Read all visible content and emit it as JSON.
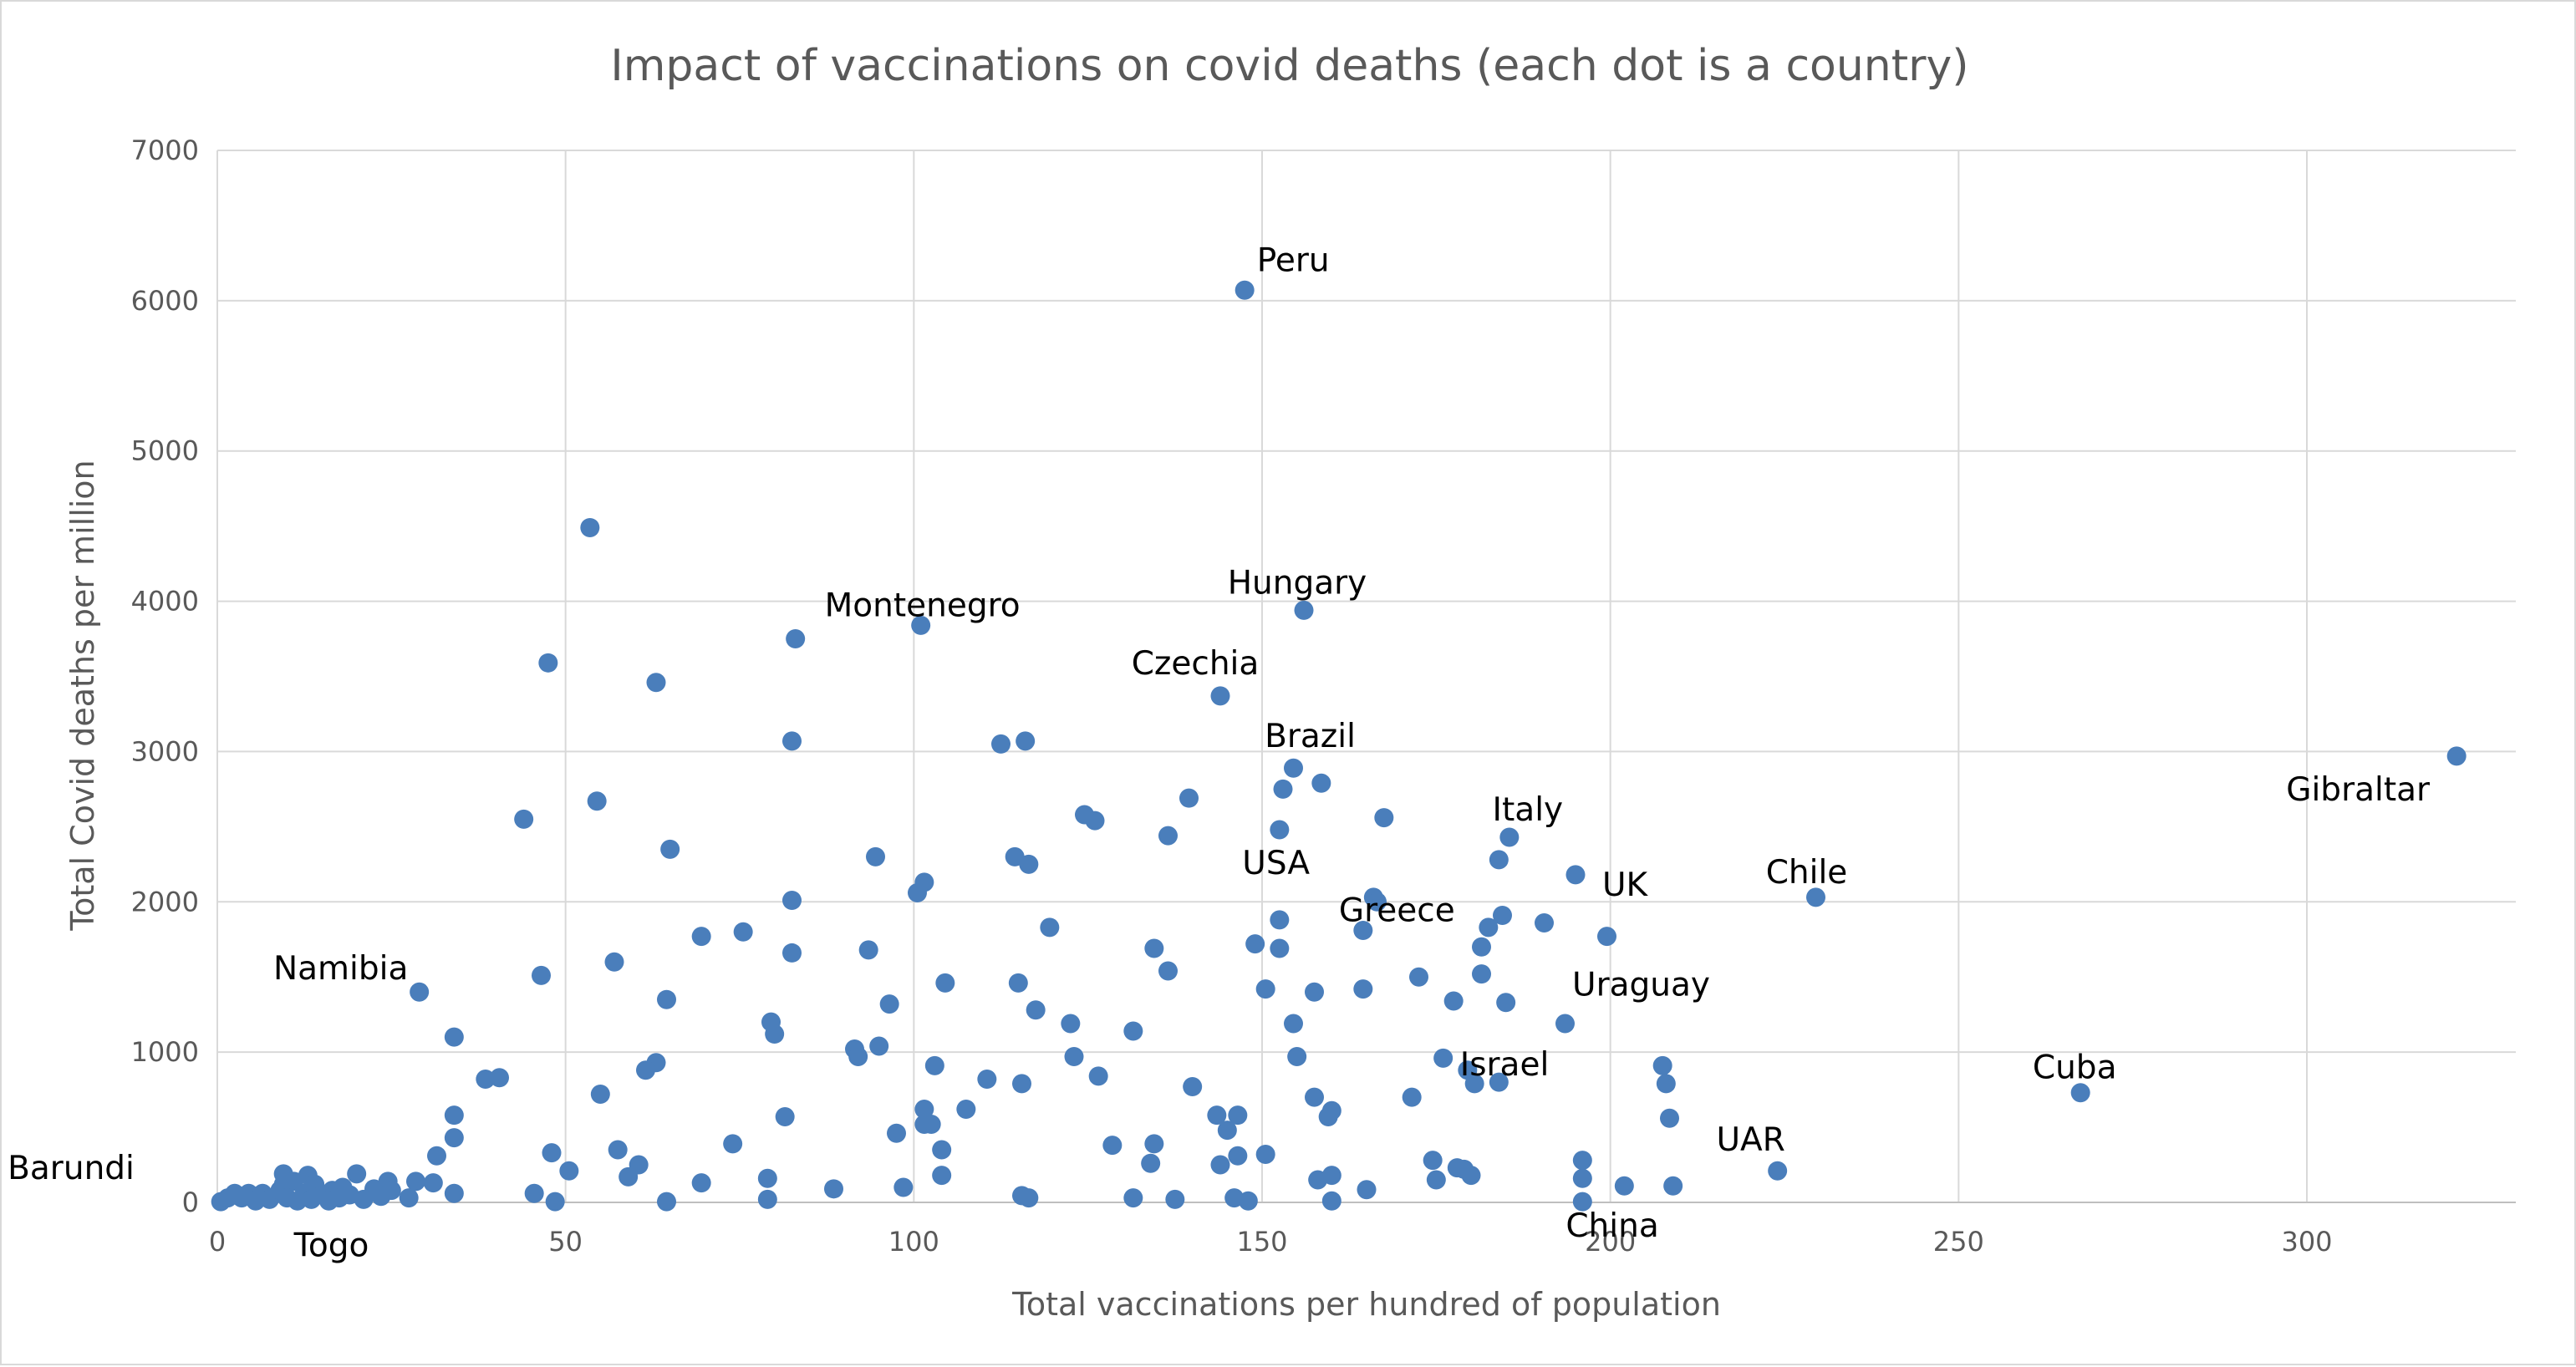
{
  "colors": {
    "marker": "#4a7ebb",
    "grid": "#d9d9d9",
    "text": "#595959",
    "annotation": "#000000"
  },
  "chart_data": {
    "type": "scatter",
    "title": "Impact of vaccinations on covid deaths (each dot is a country)",
    "xlabel": "Total vaccinations per hundred of population",
    "ylabel": "Total Covid deaths per million",
    "xlim": [
      0,
      330
    ],
    "ylim": [
      0,
      7000
    ],
    "xticks": [
      0,
      50,
      100,
      150,
      200,
      250,
      300
    ],
    "yticks": [
      0,
      1000,
      2000,
      3000,
      4000,
      5000,
      6000,
      7000
    ],
    "grid": true,
    "legend": "none",
    "annotations": [
      {
        "text": "Peru",
        "x": 147.5,
        "y": 6070
      },
      {
        "text": "Montenegro",
        "x": 101,
        "y": 3840
      },
      {
        "text": "Hungary",
        "x": 156,
        "y": 3940
      },
      {
        "text": "Czechia",
        "x": 144,
        "y": 3370
      },
      {
        "text": "Brazil",
        "x": 154.5,
        "y": 2890
      },
      {
        "text": "Gibraltar",
        "x": 321.5,
        "y": 2970
      },
      {
        "text": "Italy",
        "x": 185.5,
        "y": 2430
      },
      {
        "text": "USA",
        "x": 152,
        "y": 2480
      },
      {
        "text": "Greece",
        "x": 166,
        "y": 2020
      },
      {
        "text": "UK",
        "x": 195,
        "y": 2180
      },
      {
        "text": "Chile",
        "x": 229.5,
        "y": 2030
      },
      {
        "text": "Namibia",
        "x": 29,
        "y": 1400
      },
      {
        "text": "Uraguay",
        "x": 199.5,
        "y": 1770
      },
      {
        "text": "Cuba",
        "x": 267.5,
        "y": 730
      },
      {
        "text": "Israel",
        "x": 180,
        "y": 790
      },
      {
        "text": "UAR",
        "x": 224,
        "y": 210
      },
      {
        "text": "Barundi",
        "x": 0.5,
        "y": 5
      },
      {
        "text": "Togo",
        "x": 14,
        "y": 20
      },
      {
        "text": "China",
        "x": 196,
        "y": 5
      }
    ],
    "series": [
      {
        "points": [
          [
            147.5,
            6070
          ],
          [
            53.5,
            4490
          ],
          [
            156,
            3940
          ],
          [
            101,
            3840
          ],
          [
            83,
            3750
          ],
          [
            47.5,
            3590
          ],
          [
            63,
            3460
          ],
          [
            144,
            3370
          ],
          [
            82.5,
            3070
          ],
          [
            112.5,
            3050
          ],
          [
            116,
            3070
          ],
          [
            321.5,
            2970
          ],
          [
            154.5,
            2890
          ],
          [
            158.5,
            2790
          ],
          [
            153,
            2750
          ],
          [
            139.5,
            2690
          ],
          [
            54.5,
            2670
          ],
          [
            124.5,
            2580
          ],
          [
            126,
            2540
          ],
          [
            167.5,
            2560
          ],
          [
            44,
            2550
          ],
          [
            152.5,
            2480
          ],
          [
            136.5,
            2440
          ],
          [
            185.5,
            2430
          ],
          [
            65,
            2350
          ],
          [
            94.5,
            2300
          ],
          [
            114.5,
            2300
          ],
          [
            116.5,
            2250
          ],
          [
            184,
            2280
          ],
          [
            195,
            2180
          ],
          [
            101.5,
            2130
          ],
          [
            100.5,
            2060
          ],
          [
            82.5,
            2010
          ],
          [
            166,
            2030
          ],
          [
            166.5,
            2000
          ],
          [
            229.5,
            2030
          ],
          [
            152.5,
            1880
          ],
          [
            184.5,
            1910
          ],
          [
            190.5,
            1860
          ],
          [
            182.5,
            1830
          ],
          [
            119.5,
            1830
          ],
          [
            164.5,
            1810
          ],
          [
            75.5,
            1800
          ],
          [
            69.5,
            1770
          ],
          [
            199.5,
            1770
          ],
          [
            149,
            1720
          ],
          [
            152.5,
            1690
          ],
          [
            134.5,
            1690
          ],
          [
            181.5,
            1700
          ],
          [
            93.5,
            1680
          ],
          [
            82.5,
            1660
          ],
          [
            57,
            1600
          ],
          [
            136.5,
            1540
          ],
          [
            46.5,
            1510
          ],
          [
            172.5,
            1500
          ],
          [
            181.5,
            1520
          ],
          [
            104.5,
            1460
          ],
          [
            115,
            1460
          ],
          [
            150.5,
            1420
          ],
          [
            157.5,
            1400
          ],
          [
            164.5,
            1420
          ],
          [
            29,
            1400
          ],
          [
            64.5,
            1350
          ],
          [
            96.5,
            1320
          ],
          [
            117.5,
            1280
          ],
          [
            177.5,
            1340
          ],
          [
            185,
            1330
          ],
          [
            79.5,
            1200
          ],
          [
            122.5,
            1190
          ],
          [
            154.5,
            1190
          ],
          [
            193.5,
            1190
          ],
          [
            80,
            1120
          ],
          [
            34,
            1100
          ],
          [
            131.5,
            1140
          ],
          [
            91.5,
            1020
          ],
          [
            95,
            1040
          ],
          [
            92,
            970
          ],
          [
            123,
            970
          ],
          [
            155,
            970
          ],
          [
            176,
            960
          ],
          [
            63,
            930
          ],
          [
            61.5,
            880
          ],
          [
            103,
            910
          ],
          [
            179.5,
            880
          ],
          [
            207.5,
            910
          ],
          [
            38.5,
            820
          ],
          [
            40.5,
            830
          ],
          [
            110.5,
            820
          ],
          [
            126.5,
            840
          ],
          [
            115.5,
            790
          ],
          [
            180.5,
            790
          ],
          [
            184,
            800
          ],
          [
            208,
            790
          ],
          [
            140,
            770
          ],
          [
            55,
            720
          ],
          [
            157.5,
            700
          ],
          [
            171.5,
            700
          ],
          [
            267.5,
            730
          ],
          [
            101.5,
            620
          ],
          [
            107.5,
            620
          ],
          [
            34,
            580
          ],
          [
            81.5,
            570
          ],
          [
            143.5,
            580
          ],
          [
            146.5,
            580
          ],
          [
            160,
            610
          ],
          [
            159.5,
            570
          ],
          [
            208.5,
            560
          ],
          [
            97.5,
            460
          ],
          [
            101.5,
            520
          ],
          [
            102.5,
            520
          ],
          [
            145,
            480
          ],
          [
            34,
            430
          ],
          [
            74,
            390
          ],
          [
            128.5,
            380
          ],
          [
            134.5,
            390
          ],
          [
            48,
            330
          ],
          [
            31.5,
            310
          ],
          [
            57.5,
            350
          ],
          [
            104,
            350
          ],
          [
            146.5,
            310
          ],
          [
            150.5,
            320
          ],
          [
            174.5,
            280
          ],
          [
            178,
            230
          ],
          [
            196,
            280
          ],
          [
            224,
            210
          ],
          [
            134,
            260
          ],
          [
            144,
            250
          ],
          [
            50.5,
            210
          ],
          [
            60.5,
            250
          ],
          [
            59,
            170
          ],
          [
            79,
            160
          ],
          [
            104,
            180
          ],
          [
            160,
            180
          ],
          [
            175,
            150
          ],
          [
            179,
            220
          ],
          [
            180,
            180
          ],
          [
            196,
            160
          ],
          [
            158,
            150
          ],
          [
            9.5,
            190
          ],
          [
            13,
            180
          ],
          [
            20,
            190
          ],
          [
            24.5,
            140
          ],
          [
            28.5,
            140
          ],
          [
            31,
            130
          ],
          [
            69.5,
            130
          ],
          [
            88.5,
            90
          ],
          [
            98.5,
            100
          ],
          [
            165,
            85
          ],
          [
            202,
            110
          ],
          [
            209,
            110
          ],
          [
            9.5,
            120
          ],
          [
            11,
            140
          ],
          [
            14,
            120
          ],
          [
            16.5,
            80
          ],
          [
            18,
            100
          ],
          [
            22.5,
            90
          ],
          [
            25,
            80
          ],
          [
            34,
            60
          ],
          [
            45.5,
            60
          ],
          [
            115.5,
            45
          ],
          [
            116.5,
            30
          ],
          [
            131.5,
            30
          ],
          [
            137.5,
            20
          ],
          [
            146,
            30
          ],
          [
            148,
            10
          ],
          [
            160,
            10
          ],
          [
            79,
            20
          ],
          [
            48.5,
            5
          ],
          [
            64.5,
            5
          ],
          [
            196,
            5
          ],
          [
            0.5,
            5
          ],
          [
            1.5,
            30
          ],
          [
            2.5,
            60
          ],
          [
            3.5,
            30
          ],
          [
            4.5,
            60
          ],
          [
            5.5,
            10
          ],
          [
            6.5,
            60
          ],
          [
            7.5,
            20
          ],
          [
            9,
            80
          ],
          [
            10,
            30
          ],
          [
            11.5,
            10
          ],
          [
            12.5,
            60
          ],
          [
            13.5,
            20
          ],
          [
            15,
            50
          ],
          [
            16,
            10
          ],
          [
            17.5,
            30
          ],
          [
            19,
            50
          ],
          [
            21,
            20
          ],
          [
            23.5,
            40
          ],
          [
            27.5,
            30
          ]
        ]
      }
    ]
  }
}
